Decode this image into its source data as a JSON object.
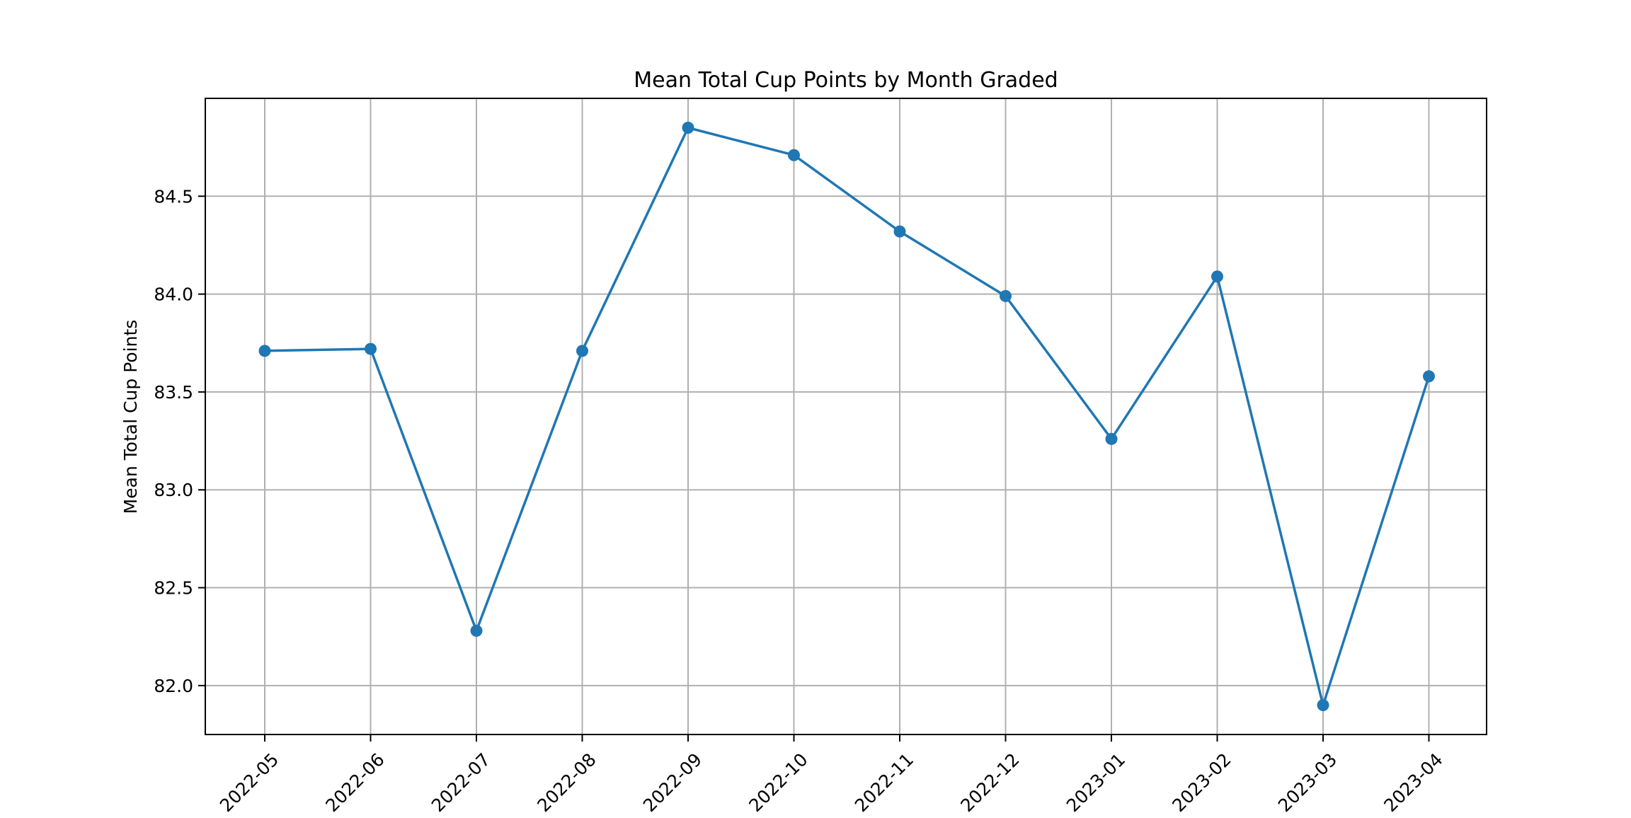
{
  "colors": {
    "series_line": "#1f77b4",
    "grid": "#b0b0b0",
    "axes": "#000000",
    "background": "#ffffff"
  },
  "chart_data": {
    "type": "line",
    "title": "Mean Total Cup Points by Month Graded",
    "xlabel": "",
    "ylabel": "Mean Total Cup Points",
    "categories": [
      "2022-05",
      "2022-06",
      "2022-07",
      "2022-08",
      "2022-09",
      "2022-10",
      "2022-11",
      "2022-12",
      "2023-01",
      "2023-02",
      "2023-03",
      "2023-04"
    ],
    "series": [
      {
        "name": "Mean Total Cup Points",
        "values": [
          83.71,
          83.72,
          82.28,
          83.71,
          84.85,
          84.71,
          84.32,
          83.99,
          83.26,
          84.09,
          81.9,
          83.58
        ],
        "marker": "circle"
      }
    ],
    "yticks": [
      "82.0",
      "82.5",
      "83.0",
      "83.5",
      "84.0",
      "84.5"
    ],
    "ylim": [
      81.75,
      85.0
    ],
    "grid": true,
    "legend": "none",
    "xtick_rotation": -45
  }
}
